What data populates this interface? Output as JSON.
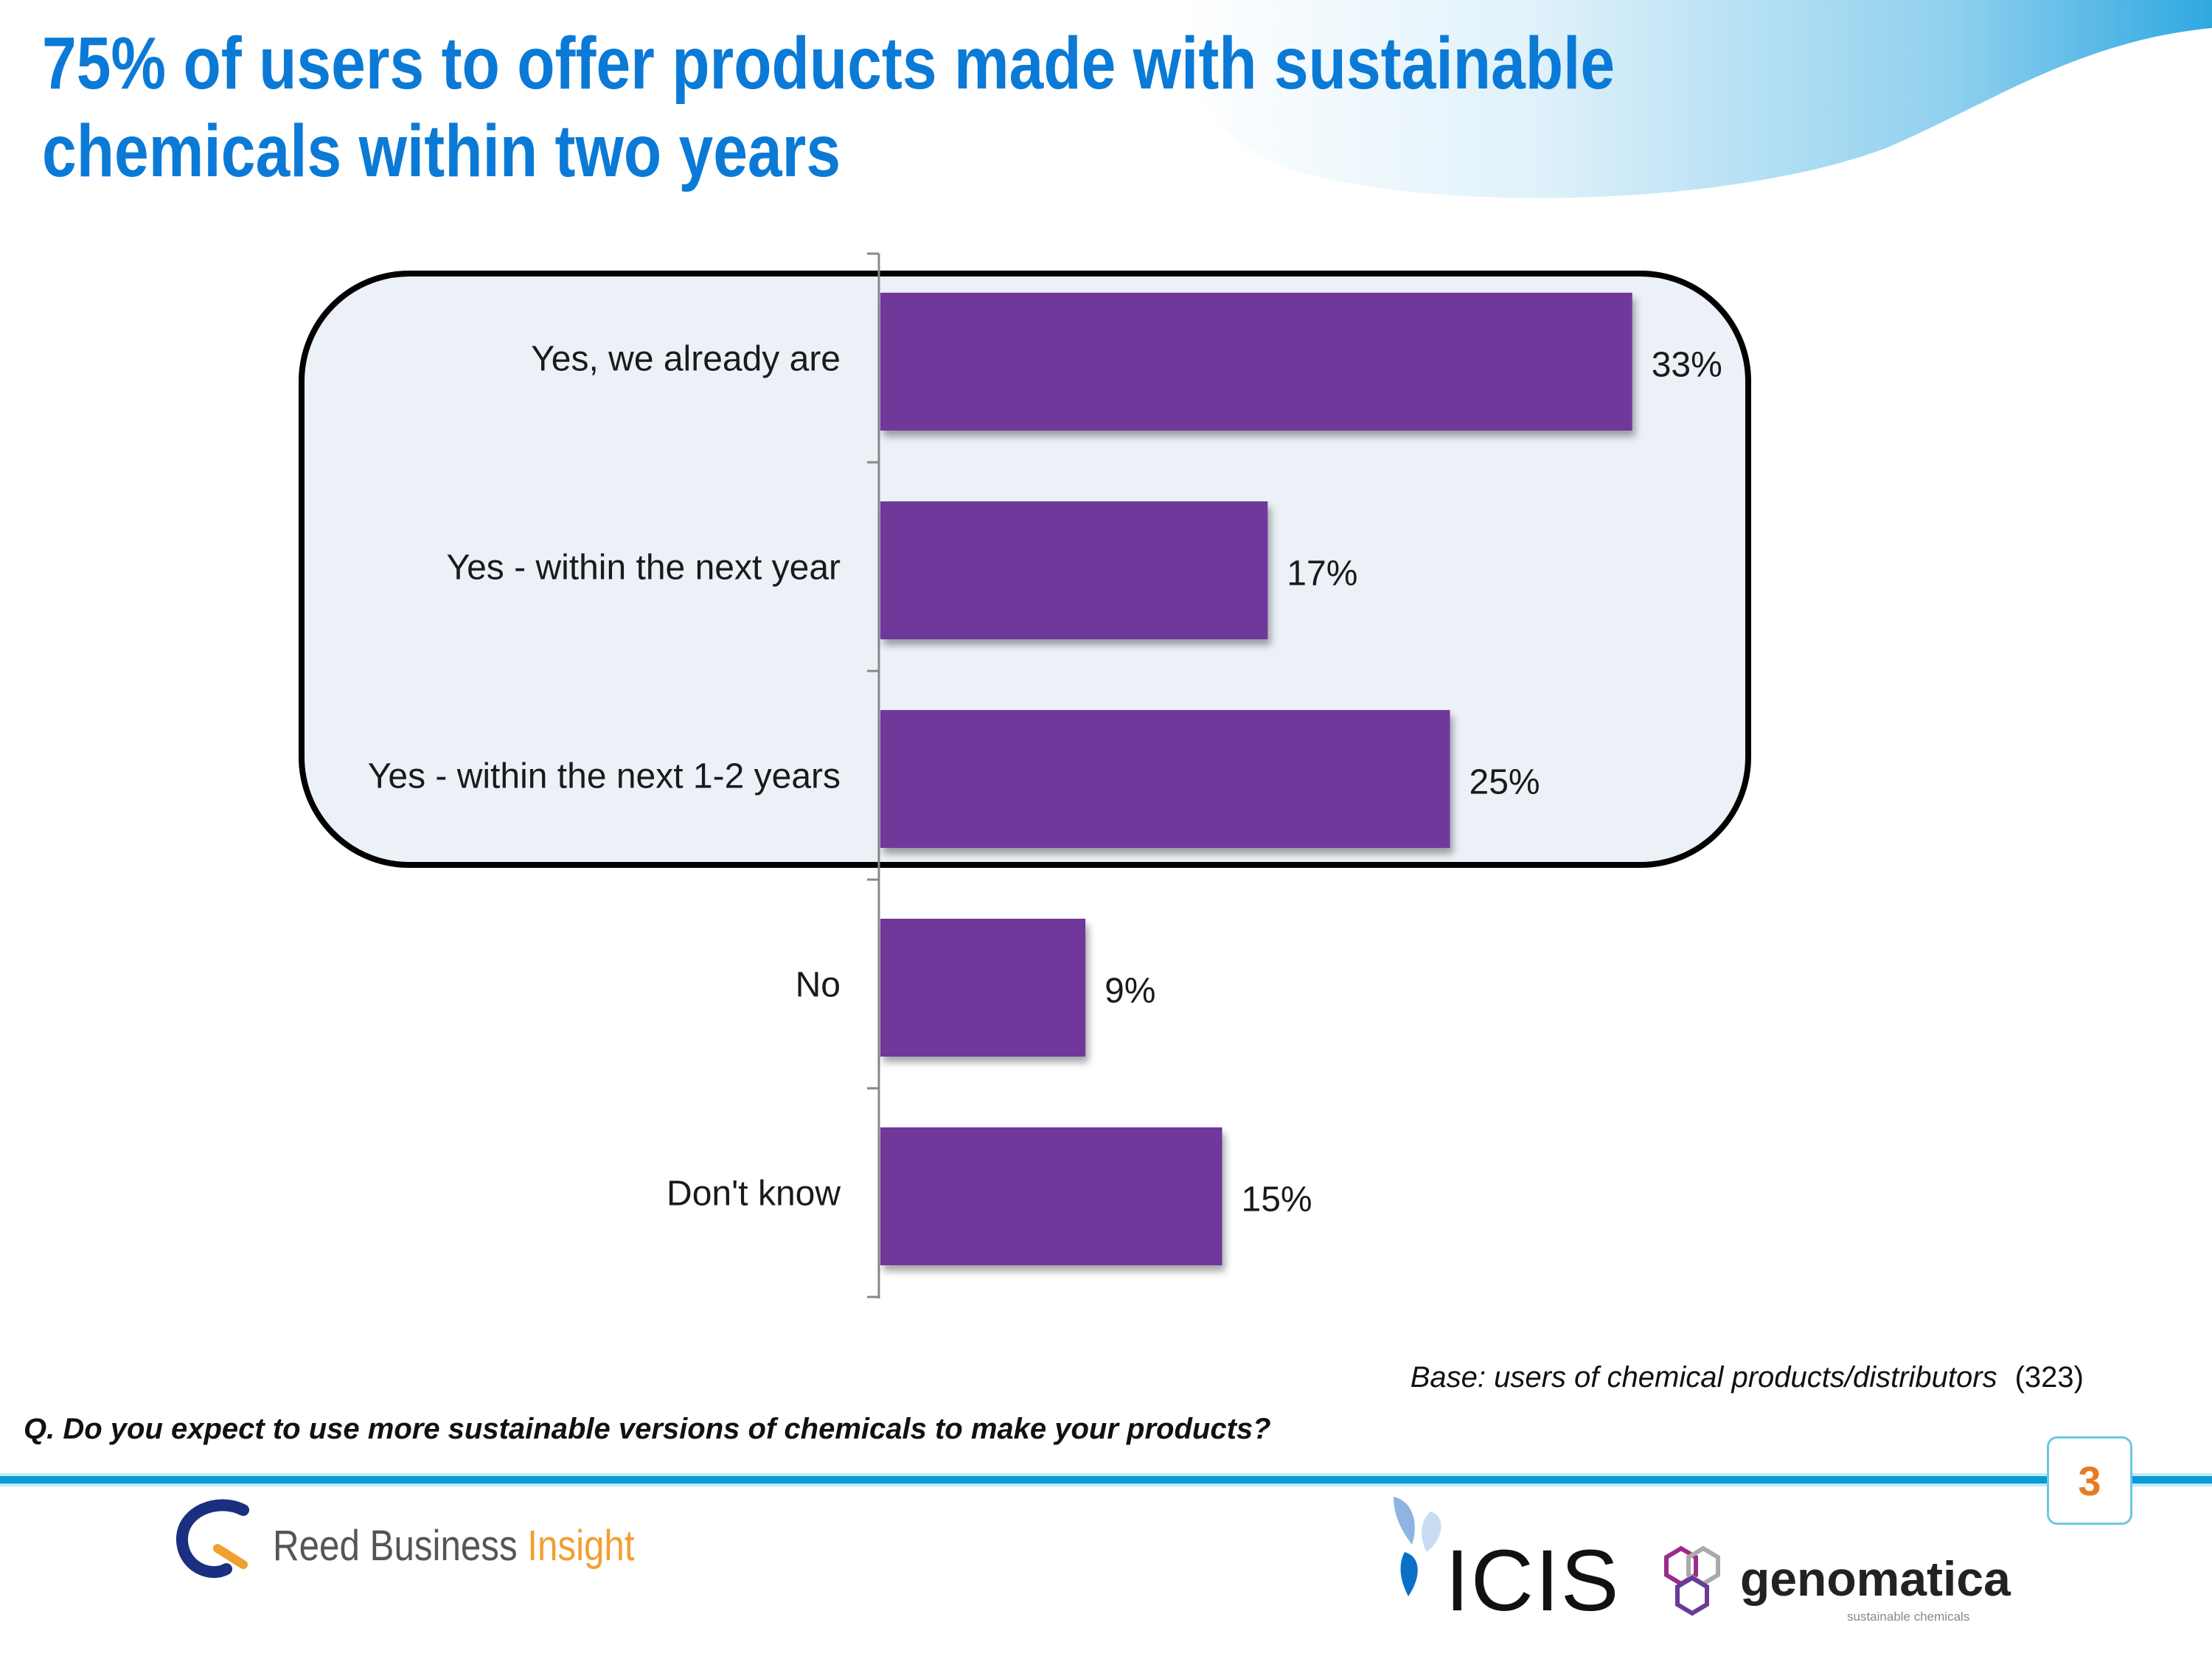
{
  "title": {
    "line1": "75% of users to offer products made with sustainable",
    "line2": "chemicals within two years"
  },
  "colors": {
    "title": "#0a7ad6",
    "bar": "#70399a",
    "highlight_box": "#ecf0f7",
    "page_number": "#e87b22",
    "rule": "#0a9ad6"
  },
  "chart_data": {
    "type": "bar",
    "orientation": "horizontal",
    "categories": [
      "Yes, we already are",
      "Yes - within the next year",
      "Yes - within the next 1-2 years",
      "No",
      "Don't know"
    ],
    "values": [
      33,
      17,
      25,
      9,
      15
    ],
    "value_labels": [
      "33%",
      "17%",
      "25%",
      "9%",
      "15%"
    ],
    "unit": "%",
    "xlim": [
      0,
      40
    ],
    "grid": false,
    "highlighted_categories": [
      "Yes, we already are",
      "Yes - within the next year",
      "Yes - within the next 1-2 years"
    ]
  },
  "question": "Q. Do you expect to use more sustainable versions of chemicals to make your products?",
  "base": {
    "label": "Base: users of chemical products/distributors",
    "count": "(323)"
  },
  "page_number": "3",
  "logos": {
    "rbi": {
      "part1": "Reed Business ",
      "part2": "Insight"
    },
    "icis": "ICIS",
    "genomatica": {
      "name": "genomatica",
      "tagline": "sustainable chemicals"
    }
  }
}
